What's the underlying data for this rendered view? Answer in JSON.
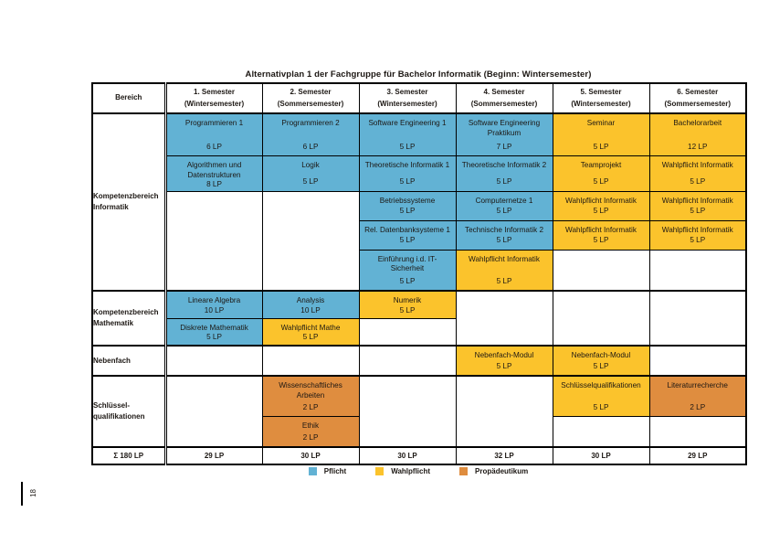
{
  "title": "Alternativplan 1 der Fachgruppe für Bachelor Informatik (Beginn: Wintersemester)",
  "page_number": "18",
  "colors": {
    "blue": "#62B2D4",
    "yellow": "#FBC32C",
    "orange": "#DF8D3F"
  },
  "header": {
    "bereich": "Bereich",
    "columns": [
      {
        "line1": "1. Semester",
        "line2": "(Wintersemester)"
      },
      {
        "line1": "2. Semester",
        "line2": "(Sommersemester)"
      },
      {
        "line1": "3. Semester",
        "line2": "(Wintersemester)"
      },
      {
        "line1": "4. Semester",
        "line2": "(Sommersemester)"
      },
      {
        "line1": "5. Semester",
        "line2": "(Wintersemester)"
      },
      {
        "line1": "6. Semester",
        "line2": "(Sommersemester)"
      }
    ]
  },
  "plan": {
    "sections": [
      {
        "label_lines": [
          "Kompetenzbereich",
          "Informatik"
        ],
        "rows": [
          [
            {
              "col": 1,
              "title": "Programmieren 1",
              "lp": "6 LP",
              "color": "blue"
            },
            {
              "col": 2,
              "title": "Programmieren 2",
              "lp": "6 LP",
              "color": "blue"
            },
            {
              "col": 3,
              "title": "Software Engineering 1",
              "lp": "5 LP",
              "color": "blue"
            },
            {
              "col": 4,
              "title": "Software Engineering Praktikum",
              "lp": "7 LP",
              "color": "blue"
            },
            {
              "col": 5,
              "title": "Seminar",
              "lp": "5 LP",
              "color": "yellow"
            },
            {
              "col": 6,
              "title": "Bachelorarbeit",
              "lp": "12 LP",
              "color": "yellow"
            }
          ],
          [
            {
              "col": 1,
              "title": "Algorithmen und Datenstrukturen",
              "lp": "8 LP",
              "color": "blue"
            },
            {
              "col": 2,
              "title": "Logik",
              "lp": "5 LP",
              "color": "blue"
            },
            {
              "col": 3,
              "title": "Theoretische Informatik 1",
              "lp": "5 LP",
              "color": "blue"
            },
            {
              "col": 4,
              "title": "Theoretische Informatik 2",
              "lp": "5 LP",
              "color": "blue"
            },
            {
              "col": 5,
              "title": "Teamprojekt",
              "lp": "5 LP",
              "color": "yellow"
            },
            {
              "col": 6,
              "title": "Wahlpflicht Informatik",
              "lp": "5 LP",
              "color": "yellow"
            }
          ],
          [
            {
              "col": 1,
              "rowspan": 3
            },
            {
              "col": 2,
              "rowspan": 3
            },
            {
              "col": 3,
              "title": "Betriebssysteme",
              "lp": "5 LP",
              "color": "blue"
            },
            {
              "col": 4,
              "title": "Computernetze 1",
              "lp": "5 LP",
              "color": "blue"
            },
            {
              "col": 5,
              "title": "Wahlpflicht Informatik",
              "lp": "5 LP",
              "color": "yellow"
            },
            {
              "col": 6,
              "title": "Wahlpflicht Informatik",
              "lp": "5 LP",
              "color": "yellow"
            }
          ],
          [
            {
              "col": 3,
              "title": "Rel. Datenbanksysteme 1",
              "lp": "5 LP",
              "color": "blue"
            },
            {
              "col": 4,
              "title": "Technische Informatik 2",
              "lp": "5 LP",
              "color": "blue"
            },
            {
              "col": 5,
              "title": "Wahlpflicht Informatik",
              "lp": "5 LP",
              "color": "yellow"
            },
            {
              "col": 6,
              "title": "Wahlpflicht Informatik",
              "lp": "5 LP",
              "color": "yellow"
            }
          ],
          [
            {
              "col": 3,
              "title": "Einführung i.d. IT-Sicherheit",
              "lp": "5 LP",
              "color": "blue"
            },
            {
              "col": 4,
              "title": "Wahlpflicht Informatik",
              "lp": "5 LP",
              "color": "yellow"
            },
            {
              "col": 5
            },
            {
              "col": 6
            }
          ]
        ]
      },
      {
        "label_lines": [
          "Kompetenzbereich",
          "Mathematik"
        ],
        "rows": [
          [
            {
              "col": 1,
              "title": "Lineare Algebra",
              "lp": "10 LP",
              "color": "blue"
            },
            {
              "col": 2,
              "title": "Analysis",
              "lp": "10 LP",
              "color": "blue"
            },
            {
              "col": 3,
              "title": "Numerik",
              "lp": "5 LP",
              "color": "yellow"
            },
            {
              "col": 4,
              "rowspan": 2
            },
            {
              "col": 5,
              "rowspan": 2
            },
            {
              "col": 6,
              "rowspan": 2
            }
          ],
          [
            {
              "col": 1,
              "title": "Diskrete Mathematik",
              "lp": "5 LP",
              "color": "blue"
            },
            {
              "col": 2,
              "title": "Wahlpflicht Mathe",
              "lp": "5 LP",
              "color": "yellow"
            },
            {
              "col": 3
            }
          ]
        ]
      },
      {
        "label_lines": [
          "Nebenfach"
        ],
        "rows": [
          [
            {
              "col": 1
            },
            {
              "col": 2
            },
            {
              "col": 3
            },
            {
              "col": 4,
              "title": "Nebenfach-Modul",
              "lp": "5 LP",
              "color": "yellow"
            },
            {
              "col": 5,
              "title": "Nebenfach-Modul",
              "lp": "5 LP",
              "color": "yellow"
            },
            {
              "col": 6
            }
          ]
        ]
      },
      {
        "label_lines": [
          "Schlüssel-",
          "qualifikationen"
        ],
        "rows": [
          [
            {
              "col": 1,
              "rowspan": 2
            },
            {
              "col": 2,
              "title": "Wissenschaftliches Arbeiten",
              "lp": "2 LP",
              "color": "orange"
            },
            {
              "col": 3,
              "rowspan": 2
            },
            {
              "col": 4,
              "rowspan": 2
            },
            {
              "col": 5,
              "title": "Schlüsselqualifikationen",
              "lp": "5 LP",
              "color": "yellow"
            },
            {
              "col": 6,
              "title": "Literaturrecherche",
              "lp": "2 LP",
              "color": "orange"
            }
          ],
          [
            {
              "col": 2,
              "title": "Ethik",
              "lp": "2 LP",
              "color": "orange"
            },
            {
              "col": 5
            },
            {
              "col": 6
            }
          ]
        ]
      }
    ]
  },
  "totals": {
    "label": "Σ 180 LP",
    "values": [
      "29 LP",
      "30 LP",
      "30 LP",
      "32 LP",
      "30 LP",
      "29 LP"
    ]
  },
  "legend": [
    {
      "label": "Pflicht",
      "color": "blue"
    },
    {
      "label": "Wahlpflicht",
      "color": "yellow"
    },
    {
      "label": "Propädeutikum",
      "color": "orange"
    }
  ]
}
